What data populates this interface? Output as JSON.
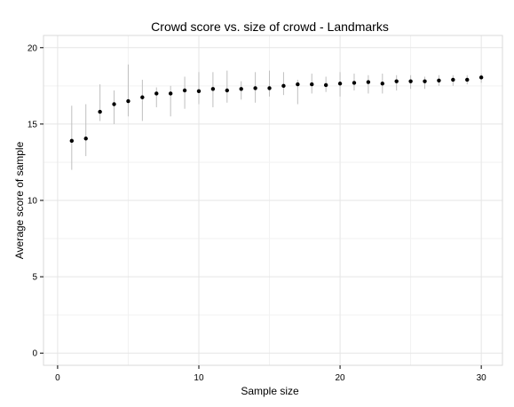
{
  "chart_data": {
    "type": "scatter",
    "title": "Crowd score vs. size of crowd -  Landmarks",
    "xlabel": "Sample size",
    "ylabel": "Average score of sample",
    "xlim": [
      -1,
      31.5
    ],
    "ylim": [
      -0.8,
      20.8
    ],
    "x_ticks": [
      0,
      10,
      20,
      30
    ],
    "y_ticks": [
      0,
      5,
      10,
      15,
      20
    ],
    "x_minor_ticks": [
      5,
      15,
      25
    ],
    "y_minor_ticks": [
      2.5,
      7.5,
      12.5,
      17.5
    ],
    "grid": true,
    "legend": "none",
    "colors": {
      "point": "#000000",
      "errorbar": "#bfbfbf",
      "grid_major": "#e5e5e5",
      "grid_minor": "#f2f2f2",
      "panel_border": "#d9d9d9"
    },
    "points": [
      {
        "x": 1,
        "y": 13.9,
        "ymin": 12.0,
        "ymax": 16.2
      },
      {
        "x": 2,
        "y": 14.05,
        "ymin": 12.9,
        "ymax": 16.3
      },
      {
        "x": 3,
        "y": 15.8,
        "ymin": 15.2,
        "ymax": 17.6
      },
      {
        "x": 4,
        "y": 16.3,
        "ymin": 15.0,
        "ymax": 17.2
      },
      {
        "x": 5,
        "y": 16.5,
        "ymin": 15.5,
        "ymax": 18.9
      },
      {
        "x": 6,
        "y": 16.75,
        "ymin": 15.2,
        "ymax": 17.9
      },
      {
        "x": 7,
        "y": 17.0,
        "ymin": 16.1,
        "ymax": 17.4
      },
      {
        "x": 8,
        "y": 17.0,
        "ymin": 15.5,
        "ymax": 17.5
      },
      {
        "x": 9,
        "y": 17.2,
        "ymin": 16.0,
        "ymax": 18.1
      },
      {
        "x": 10,
        "y": 17.15,
        "ymin": 16.3,
        "ymax": 18.4
      },
      {
        "x": 11,
        "y": 17.3,
        "ymin": 16.1,
        "ymax": 18.4
      },
      {
        "x": 12,
        "y": 17.2,
        "ymin": 16.4,
        "ymax": 18.5
      },
      {
        "x": 13,
        "y": 17.3,
        "ymin": 16.6,
        "ymax": 17.8
      },
      {
        "x": 14,
        "y": 17.35,
        "ymin": 16.4,
        "ymax": 18.4
      },
      {
        "x": 15,
        "y": 17.35,
        "ymin": 16.8,
        "ymax": 18.5
      },
      {
        "x": 16,
        "y": 17.5,
        "ymin": 16.9,
        "ymax": 18.4
      },
      {
        "x": 17,
        "y": 17.6,
        "ymin": 16.3,
        "ymax": 17.9
      },
      {
        "x": 18,
        "y": 17.6,
        "ymin": 17.0,
        "ymax": 18.3
      },
      {
        "x": 19,
        "y": 17.55,
        "ymin": 17.1,
        "ymax": 18.1
      },
      {
        "x": 20,
        "y": 17.65,
        "ymin": 16.8,
        "ymax": 18.4
      },
      {
        "x": 21,
        "y": 17.7,
        "ymin": 17.2,
        "ymax": 18.3
      },
      {
        "x": 22,
        "y": 17.75,
        "ymin": 17.0,
        "ymax": 18.2
      },
      {
        "x": 23,
        "y": 17.65,
        "ymin": 17.0,
        "ymax": 18.3
      },
      {
        "x": 24,
        "y": 17.8,
        "ymin": 17.2,
        "ymax": 18.2
      },
      {
        "x": 25,
        "y": 17.8,
        "ymin": 17.3,
        "ymax": 18.2
      },
      {
        "x": 26,
        "y": 17.8,
        "ymin": 17.3,
        "ymax": 18.1
      },
      {
        "x": 27,
        "y": 17.85,
        "ymin": 17.5,
        "ymax": 18.2
      },
      {
        "x": 28,
        "y": 17.9,
        "ymin": 17.5,
        "ymax": 18.2
      },
      {
        "x": 29,
        "y": 17.9,
        "ymin": 17.6,
        "ymax": 18.2
      },
      {
        "x": 30,
        "y": 18.05,
        "ymin": 17.7,
        "ymax": 18.3
      }
    ]
  }
}
